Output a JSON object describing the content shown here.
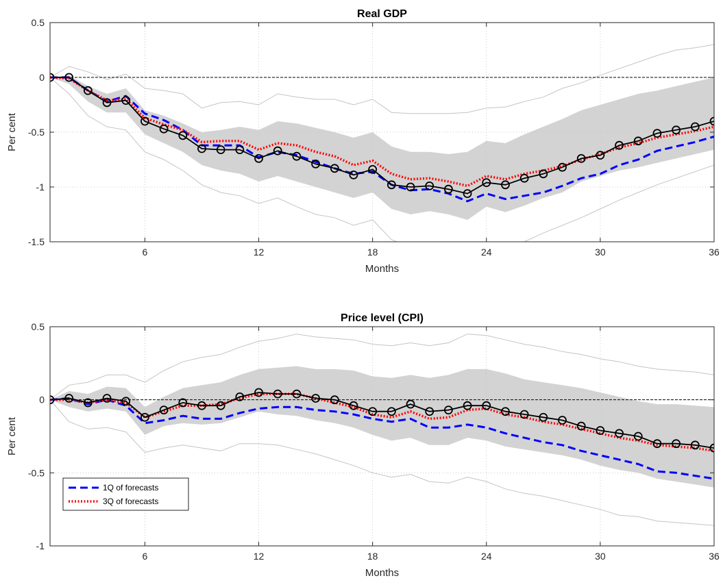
{
  "chart_data": [
    {
      "type": "line",
      "title": "Real GDP",
      "xlabel": "Months",
      "ylabel": "Per cent",
      "xlim": [
        1,
        36
      ],
      "ylim": [
        -1.5,
        0.5
      ],
      "xticks": [
        6,
        12,
        18,
        24,
        30,
        36
      ],
      "yticks": [
        0.5,
        0,
        -0.5,
        -1,
        -1.5
      ],
      "ytick_labels": [
        "0.5",
        "0",
        "-0.5",
        "-1",
        "-1.5"
      ],
      "grid": true,
      "zero_line": true,
      "x": [
        1,
        2,
        3,
        4,
        5,
        6,
        7,
        8,
        9,
        10,
        11,
        12,
        13,
        14,
        15,
        16,
        17,
        18,
        19,
        20,
        21,
        22,
        23,
        24,
        25,
        26,
        27,
        28,
        29,
        30,
        31,
        32,
        33,
        34,
        35,
        36
      ],
      "band": {
        "upper": [
          0,
          0.02,
          -0.08,
          -0.15,
          -0.1,
          -0.3,
          -0.35,
          -0.42,
          -0.5,
          -0.48,
          -0.45,
          -0.48,
          -0.4,
          -0.42,
          -0.46,
          -0.5,
          -0.55,
          -0.5,
          -0.63,
          -0.68,
          -0.68,
          -0.7,
          -0.68,
          -0.58,
          -0.6,
          -0.52,
          -0.45,
          -0.38,
          -0.3,
          -0.25,
          -0.2,
          -0.15,
          -0.12,
          -0.08,
          -0.04,
          0.0
        ],
        "lower": [
          0,
          -0.06,
          -0.22,
          -0.32,
          -0.32,
          -0.52,
          -0.6,
          -0.68,
          -0.8,
          -0.85,
          -0.88,
          -0.95,
          -0.9,
          -0.95,
          -1.0,
          -1.05,
          -1.1,
          -1.05,
          -1.2,
          -1.25,
          -1.22,
          -1.25,
          -1.3,
          -1.18,
          -1.23,
          -1.17,
          -1.1,
          -1.05,
          -0.95,
          -0.9,
          -0.85,
          -0.82,
          -0.78,
          -0.74,
          -0.7,
          -0.66
        ]
      },
      "outer_upper": [
        0,
        0.1,
        0.05,
        -0.02,
        0.03,
        -0.1,
        -0.12,
        -0.15,
        -0.28,
        -0.23,
        -0.22,
        -0.25,
        -0.15,
        -0.18,
        -0.2,
        -0.2,
        -0.25,
        -0.2,
        -0.32,
        -0.33,
        -0.33,
        -0.33,
        -0.32,
        -0.28,
        -0.27,
        -0.22,
        -0.18,
        -0.1,
        -0.05,
        0.02,
        0.08,
        0.14,
        0.2,
        0.25,
        0.27,
        0.3
      ],
      "outer_lower": [
        0,
        -0.15,
        -0.35,
        -0.45,
        -0.48,
        -0.68,
        -0.75,
        -0.85,
        -0.98,
        -1.05,
        -1.08,
        -1.15,
        -1.1,
        -1.18,
        -1.25,
        -1.28,
        -1.35,
        -1.3,
        -1.48,
        -1.55,
        -1.55,
        -1.6,
        -1.63,
        -1.55,
        -1.6,
        -1.5,
        -1.42,
        -1.35,
        -1.28,
        -1.2,
        -1.12,
        -1.05,
        -0.98,
        -0.92,
        -0.86,
        -0.8
      ],
      "series": [
        {
          "line": "solid",
          "color": "#000000",
          "marker": "circle",
          "values": [
            0,
            0,
            -0.12,
            -0.23,
            -0.21,
            -0.4,
            -0.47,
            -0.53,
            -0.65,
            -0.66,
            -0.66,
            -0.74,
            -0.67,
            -0.72,
            -0.79,
            -0.83,
            -0.89,
            -0.84,
            -0.98,
            -1.0,
            -0.99,
            -1.02,
            -1.06,
            -0.96,
            -0.98,
            -0.92,
            -0.88,
            -0.82,
            -0.74,
            -0.71,
            -0.62,
            -0.58,
            -0.51,
            -0.48,
            -0.45,
            -0.4
          ]
        },
        {
          "name": "1Q of forecasts",
          "line": "dashed",
          "color": "#0000ff",
          "values": [
            0,
            0,
            -0.12,
            -0.22,
            -0.17,
            -0.33,
            -0.39,
            -0.48,
            -0.62,
            -0.62,
            -0.62,
            -0.73,
            -0.68,
            -0.71,
            -0.77,
            -0.83,
            -0.88,
            -0.86,
            -0.98,
            -1.03,
            -1.02,
            -1.06,
            -1.13,
            -1.06,
            -1.11,
            -1.08,
            -1.05,
            -0.99,
            -0.92,
            -0.88,
            -0.8,
            -0.75,
            -0.67,
            -0.63,
            -0.59,
            -0.54
          ]
        },
        {
          "name": "3Q of forecasts",
          "line": "dotted",
          "color": "#ff0000",
          "values": [
            0,
            -0.01,
            -0.12,
            -0.21,
            -0.2,
            -0.37,
            -0.43,
            -0.48,
            -0.59,
            -0.58,
            -0.58,
            -0.66,
            -0.6,
            -0.62,
            -0.68,
            -0.72,
            -0.8,
            -0.76,
            -0.88,
            -0.93,
            -0.92,
            -0.95,
            -0.99,
            -0.9,
            -0.93,
            -0.88,
            -0.85,
            -0.81,
            -0.75,
            -0.7,
            -0.64,
            -0.6,
            -0.55,
            -0.52,
            -0.49,
            -0.45
          ]
        }
      ]
    },
    {
      "type": "line",
      "title": "Price level (CPI)",
      "xlabel": "Months",
      "ylabel": "Per cent",
      "xlim": [
        1,
        36
      ],
      "ylim": [
        -1,
        0.5
      ],
      "xticks": [
        6,
        12,
        18,
        24,
        30,
        36
      ],
      "yticks": [
        0.5,
        0,
        -0.5,
        -1
      ],
      "ytick_labels": [
        "0.5",
        "0",
        "-0.5",
        "-1"
      ],
      "grid": true,
      "zero_line": true,
      "legend": "bottom-left",
      "x": [
        1,
        2,
        3,
        4,
        5,
        6,
        7,
        8,
        9,
        10,
        11,
        12,
        13,
        14,
        15,
        16,
        17,
        18,
        19,
        20,
        21,
        22,
        23,
        24,
        25,
        26,
        27,
        28,
        29,
        30,
        31,
        32,
        33,
        34,
        35,
        36
      ],
      "band": {
        "upper": [
          0,
          0.06,
          0.04,
          0.09,
          0.08,
          -0.05,
          0.02,
          0.08,
          0.1,
          0.12,
          0.17,
          0.21,
          0.22,
          0.23,
          0.21,
          0.21,
          0.2,
          0.16,
          0.15,
          0.17,
          0.15,
          0.17,
          0.21,
          0.21,
          0.18,
          0.14,
          0.12,
          0.1,
          0.08,
          0.05,
          0.02,
          -0.01,
          -0.03,
          -0.03,
          -0.04,
          -0.05
        ],
        "lower": [
          0,
          -0.05,
          -0.08,
          -0.06,
          -0.08,
          -0.24,
          -0.18,
          -0.16,
          -0.17,
          -0.16,
          -0.12,
          -0.08,
          -0.1,
          -0.11,
          -0.14,
          -0.16,
          -0.19,
          -0.24,
          -0.28,
          -0.26,
          -0.31,
          -0.31,
          -0.26,
          -0.28,
          -0.32,
          -0.34,
          -0.36,
          -0.38,
          -0.41,
          -0.45,
          -0.48,
          -0.5,
          -0.54,
          -0.56,
          -0.58,
          -0.6
        ]
      },
      "outer_upper": [
        0,
        0.1,
        0.12,
        0.17,
        0.17,
        0.12,
        0.2,
        0.26,
        0.29,
        0.31,
        0.36,
        0.4,
        0.42,
        0.45,
        0.43,
        0.42,
        0.41,
        0.38,
        0.37,
        0.39,
        0.37,
        0.39,
        0.45,
        0.44,
        0.41,
        0.38,
        0.36,
        0.33,
        0.31,
        0.28,
        0.26,
        0.23,
        0.21,
        0.2,
        0.19,
        0.17
      ],
      "outer_lower": [
        0,
        -0.15,
        -0.2,
        -0.19,
        -0.22,
        -0.36,
        -0.33,
        -0.31,
        -0.33,
        -0.35,
        -0.3,
        -0.3,
        -0.31,
        -0.34,
        -0.37,
        -0.41,
        -0.45,
        -0.5,
        -0.53,
        -0.51,
        -0.56,
        -0.57,
        -0.53,
        -0.56,
        -0.61,
        -0.64,
        -0.66,
        -0.69,
        -0.72,
        -0.75,
        -0.79,
        -0.8,
        -0.83,
        -0.84,
        -0.85,
        -0.86
      ],
      "series": [
        {
          "line": "solid",
          "color": "#000000",
          "marker": "circle",
          "values": [
            0,
            0.01,
            -0.02,
            0.01,
            -0.01,
            -0.12,
            -0.07,
            -0.02,
            -0.04,
            -0.04,
            0.02,
            0.05,
            0.04,
            0.04,
            0.01,
            0.0,
            -0.04,
            -0.08,
            -0.08,
            -0.03,
            -0.08,
            -0.07,
            -0.04,
            -0.04,
            -0.08,
            -0.1,
            -0.12,
            -0.14,
            -0.18,
            -0.21,
            -0.23,
            -0.25,
            -0.3,
            -0.3,
            -0.31,
            -0.33
          ]
        },
        {
          "name": "1Q of forecasts",
          "line": "dashed",
          "color": "#0000ff",
          "values": [
            0,
            0.01,
            -0.03,
            0.0,
            -0.04,
            -0.16,
            -0.14,
            -0.11,
            -0.13,
            -0.13,
            -0.09,
            -0.06,
            -0.05,
            -0.05,
            -0.07,
            -0.08,
            -0.1,
            -0.13,
            -0.15,
            -0.13,
            -0.19,
            -0.19,
            -0.17,
            -0.19,
            -0.23,
            -0.26,
            -0.29,
            -0.31,
            -0.35,
            -0.38,
            -0.41,
            -0.44,
            -0.49,
            -0.5,
            -0.52,
            -0.54
          ]
        },
        {
          "name": "3Q of forecasts",
          "line": "dotted",
          "color": "#ff0000",
          "values": [
            0,
            0.0,
            -0.02,
            0.0,
            -0.02,
            -0.12,
            -0.08,
            -0.04,
            -0.04,
            -0.03,
            0.01,
            0.04,
            0.04,
            0.04,
            0.01,
            -0.02,
            -0.05,
            -0.1,
            -0.12,
            -0.08,
            -0.13,
            -0.12,
            -0.07,
            -0.06,
            -0.1,
            -0.12,
            -0.15,
            -0.17,
            -0.2,
            -0.23,
            -0.26,
            -0.28,
            -0.31,
            -0.32,
            -0.33,
            -0.35
          ]
        }
      ]
    }
  ]
}
